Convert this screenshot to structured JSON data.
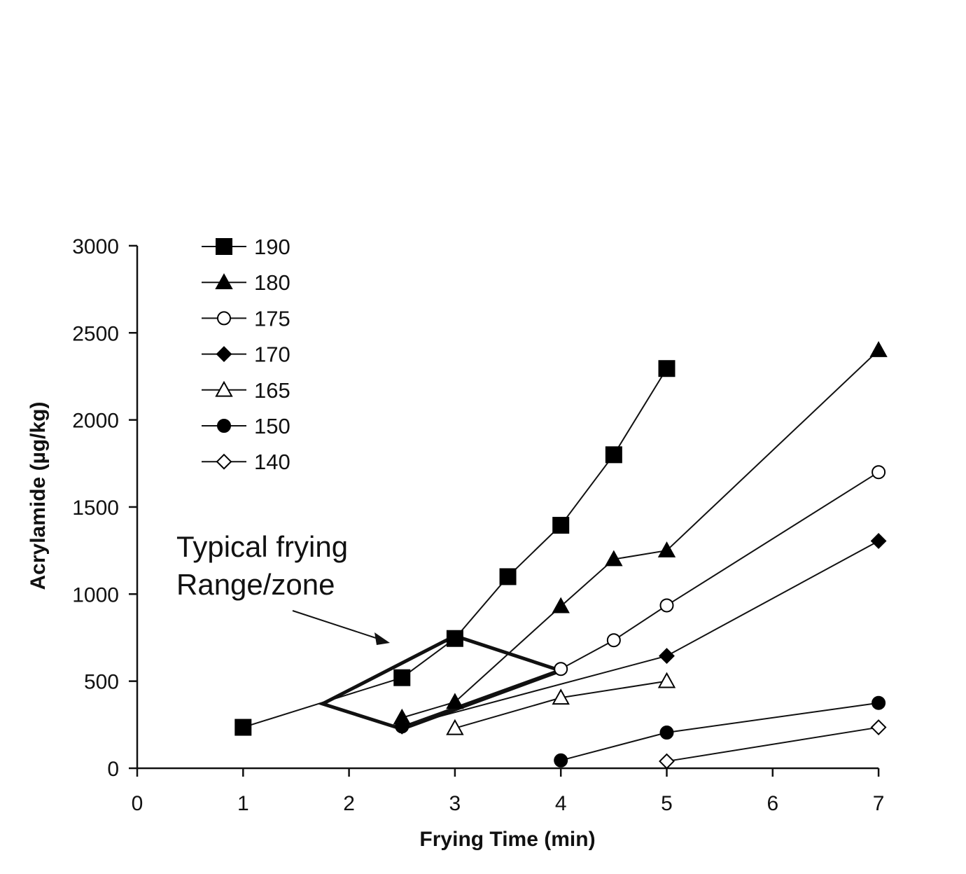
{
  "chart_data": {
    "type": "line",
    "title": "",
    "xlabel": "Frying Time (min)",
    "ylabel": "Acrylamide (µg/kg)",
    "xlim": [
      0,
      7
    ],
    "ylim": [
      0,
      3000
    ],
    "x_ticks": [
      "0",
      "1",
      "2",
      "3",
      "4",
      "5",
      "6",
      "7"
    ],
    "y_ticks": [
      "0",
      "500",
      "1000",
      "1500",
      "2000",
      "2500",
      "3000"
    ],
    "grid": false,
    "legend_position": "top-left",
    "series": [
      {
        "name": "190",
        "marker": "square-filled",
        "points": [
          [
            1,
            235
          ],
          [
            2.5,
            520
          ],
          [
            3,
            745
          ],
          [
            3.5,
            1100
          ],
          [
            4,
            1395
          ],
          [
            4.5,
            1800
          ],
          [
            5,
            2295
          ]
        ]
      },
      {
        "name": "180",
        "marker": "triangle-filled",
        "points": [
          [
            2.5,
            290
          ],
          [
            3,
            380
          ],
          [
            4,
            930
          ],
          [
            4.5,
            1200
          ],
          [
            5,
            1250
          ],
          [
            7,
            2400
          ]
        ]
      },
      {
        "name": "175",
        "marker": "circle-open",
        "points": [
          [
            2.5,
            240
          ],
          [
            4,
            570
          ],
          [
            4.5,
            735
          ],
          [
            5,
            935
          ],
          [
            7,
            1700
          ]
        ]
      },
      {
        "name": "170",
        "marker": "diamond-filled",
        "points": [
          [
            2.5,
            240
          ],
          [
            5,
            645
          ],
          [
            7,
            1305
          ]
        ]
      },
      {
        "name": "165",
        "marker": "triangle-open",
        "points": [
          [
            3,
            230
          ],
          [
            4,
            405
          ],
          [
            5,
            500
          ]
        ]
      },
      {
        "name": "150",
        "marker": "circle-filled",
        "points": [
          [
            4,
            45
          ],
          [
            5,
            205
          ],
          [
            7,
            375
          ]
        ]
      },
      {
        "name": "140",
        "marker": "diamond-open",
        "points": [
          [
            5,
            40
          ],
          [
            7,
            235
          ]
        ]
      }
    ],
    "annotation": {
      "lines": [
        "Typical frying",
        "Range/zone"
      ],
      "zone_polygon": [
        [
          1.75,
          370
        ],
        [
          3,
          760
        ],
        [
          4,
          560
        ],
        [
          2.5,
          225
        ]
      ]
    }
  }
}
